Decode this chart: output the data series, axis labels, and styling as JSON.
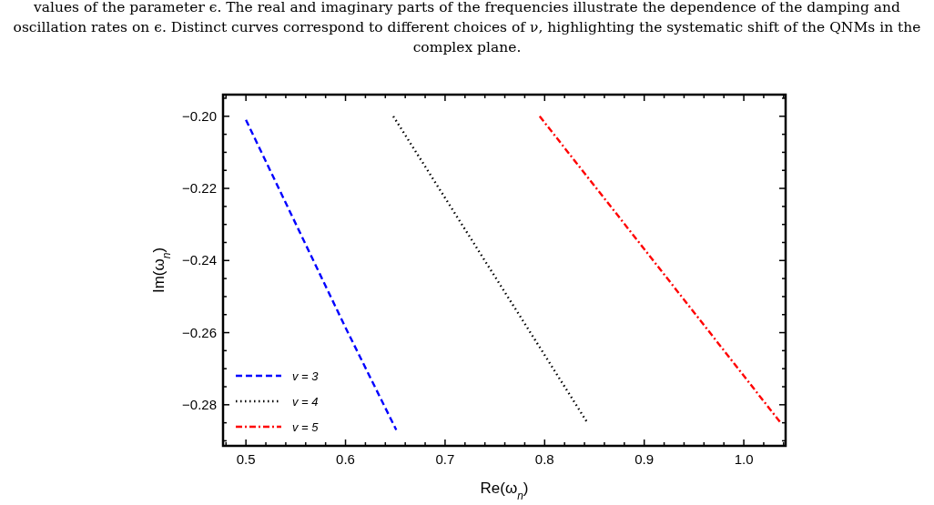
{
  "chart_data": {
    "type": "line",
    "xlabel": "Re(ω$_{n}$)",
    "ylabel": "Im(ω$_{n}$)",
    "annotations": [
      "values of the parameter ϵ. The real and imaginary parts of the frequencies illustrate the dependence of the damping and oscillation rates on ϵ. Distinct curves correspond to different choices of ν, highlighting the systematic shift of the QNMs in the complex plane."
    ],
    "xlim": [
      0.477,
      1.042
    ],
    "ylim": [
      -0.2914,
      -0.194
    ],
    "xticks": [
      {
        "value": 0.48,
        "label": null
      },
      0.5,
      {
        "value": 0.52,
        "label": null
      },
      {
        "value": 0.54,
        "label": null
      },
      {
        "value": 0.56,
        "label": null
      },
      {
        "value": 0.58,
        "label": null
      },
      0.6,
      {
        "value": 0.62,
        "label": null
      },
      {
        "value": 0.64,
        "label": null
      },
      {
        "value": 0.66,
        "label": null
      },
      {
        "value": 0.68,
        "label": null
      },
      0.7,
      {
        "value": 0.72,
        "label": null
      },
      {
        "value": 0.74,
        "label": null
      },
      {
        "value": 0.76,
        "label": null
      },
      {
        "value": 0.78,
        "label": null
      },
      0.8,
      {
        "value": 0.82,
        "label": null
      },
      {
        "value": 0.84,
        "label": null
      },
      {
        "value": 0.86,
        "label": null
      },
      {
        "value": 0.88,
        "label": null
      },
      0.9,
      {
        "value": 0.92,
        "label": null
      },
      {
        "value": 0.94,
        "label": null
      },
      {
        "value": 0.96,
        "label": null
      },
      {
        "value": 0.98,
        "label": null
      },
      {
        "value": 1.0,
        "label": "1.0"
      },
      {
        "value": 1.02,
        "label": null
      },
      {
        "value": 1.04,
        "label": null
      }
    ],
    "yticks": [
      {
        "value": -0.29,
        "label": null
      },
      {
        "value": -0.285,
        "label": null
      },
      {
        "value": -0.28,
        "label": "−0.28"
      },
      {
        "value": -0.275,
        "label": null
      },
      {
        "value": -0.27,
        "label": null
      },
      {
        "value": -0.265,
        "label": null
      },
      {
        "value": -0.26,
        "label": "−0.26"
      },
      {
        "value": -0.255,
        "label": null
      },
      {
        "value": -0.25,
        "label": null
      },
      {
        "value": -0.245,
        "label": null
      },
      {
        "value": -0.24,
        "label": "−0.24"
      },
      {
        "value": -0.235,
        "label": null
      },
      {
        "value": -0.23,
        "label": null
      },
      {
        "value": -0.225,
        "label": null
      },
      {
        "value": -0.22,
        "label": "−0.22"
      },
      {
        "value": -0.215,
        "label": null
      },
      {
        "value": -0.21,
        "label": null
      },
      {
        "value": -0.205,
        "label": null
      },
      {
        "value": -0.2,
        "label": "−0.20"
      },
      {
        "value": -0.195,
        "label": null
      }
    ],
    "legend": "bottom left",
    "grid": false,
    "marker": "none",
    "series": [
      {
        "name": "v = 3",
        "color": "#0000ff",
        "line_style": "dashed",
        "x": [
          0.5,
          0.55,
          0.6,
          0.651
        ],
        "values": [
          -0.201,
          -0.2298,
          -0.2586,
          -0.287
        ]
      },
      {
        "name": "v = 4",
        "color": "#000000",
        "line_style": "dotted",
        "x": [
          0.648,
          0.71,
          0.78,
          0.843
        ],
        "values": [
          -0.2,
          -0.227,
          -0.2575,
          -0.285
        ]
      },
      {
        "name": "v = 5",
        "color": "#ff0000",
        "line_style": "dashdot",
        "x": [
          0.795,
          0.88,
          0.96,
          1.037
        ],
        "values": [
          -0.2,
          -0.2298,
          -0.2579,
          -0.285
        ]
      }
    ]
  }
}
